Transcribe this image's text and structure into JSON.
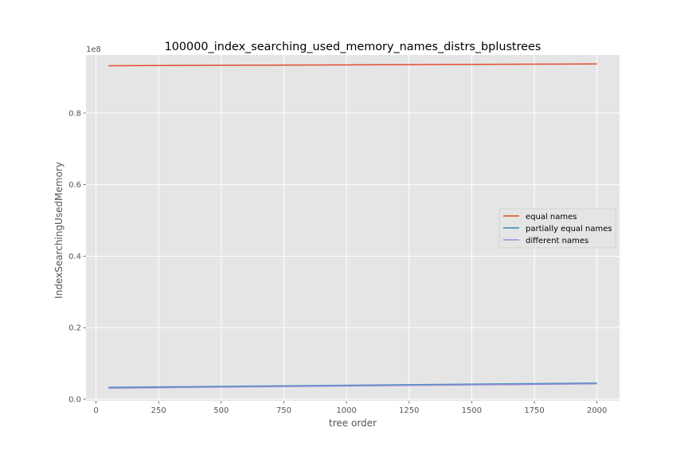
{
  "chart_data": {
    "type": "line",
    "title": "100000_index_searching_used_memory_names_distrs_bplustrees",
    "xlabel": "tree order",
    "ylabel": "IndexSearchingUsedMemory",
    "y_offset_label": "1e8",
    "xlim": [
      -40,
      2090
    ],
    "ylim": [
      -0.0045,
      0.9625
    ],
    "x_ticks": [
      0,
      250,
      500,
      750,
      1000,
      1250,
      1500,
      1750,
      2000
    ],
    "x_tick_labels": [
      "0",
      "250",
      "500",
      "750",
      "1000",
      "1250",
      "1500",
      "1750",
      "2000"
    ],
    "y_ticks": [
      0.0,
      0.2,
      0.4,
      0.6,
      0.8
    ],
    "y_tick_labels": [
      "0.0",
      "0.2",
      "0.4",
      "0.6",
      "0.8"
    ],
    "x": [
      50,
      2000
    ],
    "series": [
      {
        "name": "equal names",
        "color": "#E24A33",
        "values": [
          0.9325,
          0.9375
        ]
      },
      {
        "name": "partially equal names",
        "color": "#348ABD",
        "values": [
          0.033,
          0.045
        ]
      },
      {
        "name": "different names",
        "color": "#988ED5",
        "values": [
          0.031,
          0.043
        ]
      }
    ],
    "grid": true,
    "legend_position": "center-right",
    "style": "ggplot"
  }
}
